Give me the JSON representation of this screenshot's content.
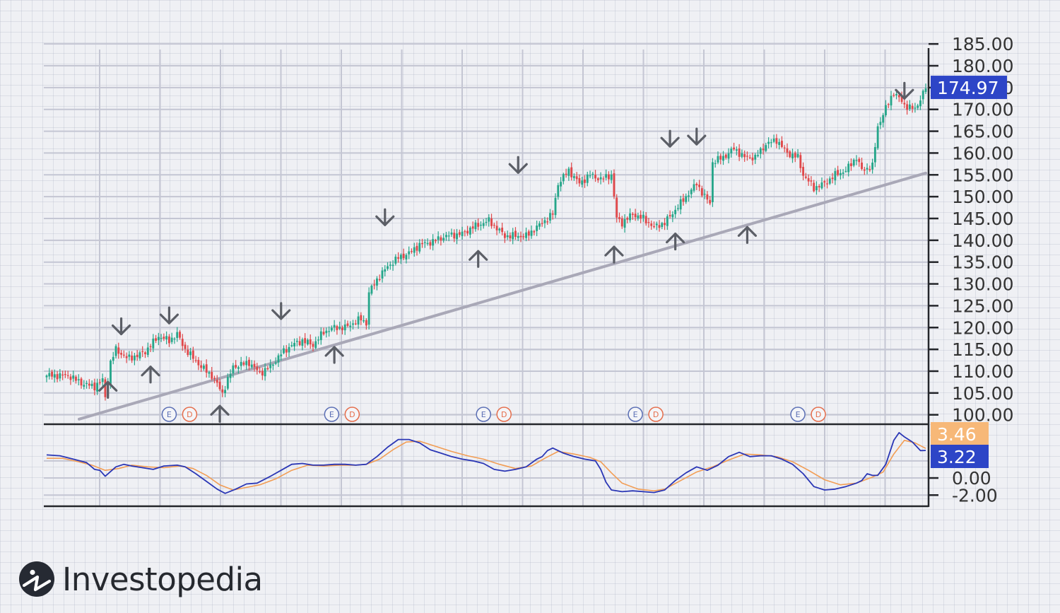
{
  "brand": {
    "name": "Investopedia"
  },
  "chart_data": {
    "type": "candlestick",
    "panels": [
      {
        "name": "price",
        "ylim": [
          98,
          186
        ],
        "ticks": [
          "185.00",
          "180.00",
          "175.00",
          "170.00",
          "165.00",
          "160.00",
          "155.00",
          "150.00",
          "145.00",
          "140.00",
          "135.00",
          "130.00",
          "125.00",
          "120.00",
          "115.00",
          "110.00",
          "105.00",
          "100.00"
        ],
        "last_price": {
          "value": 174.97,
          "label": "174.97",
          "color": "#2d45c7"
        },
        "up_color": "#26a68a",
        "down_color": "#e0484a",
        "anchors": [
          [
            0,
            109
          ],
          [
            8,
            109
          ],
          [
            14,
            107
          ],
          [
            18,
            106.5
          ],
          [
            21,
            108
          ],
          [
            22,
            104
          ],
          [
            24,
            112
          ],
          [
            26,
            115
          ],
          [
            30,
            113
          ],
          [
            34,
            113.5
          ],
          [
            37,
            114.5
          ],
          [
            42,
            118
          ],
          [
            46,
            117
          ],
          [
            49,
            118.5
          ],
          [
            52,
            115
          ],
          [
            58,
            111
          ],
          [
            62,
            109
          ],
          [
            66,
            105
          ],
          [
            70,
            111
          ],
          [
            76,
            112
          ],
          [
            80,
            109.5
          ],
          [
            84,
            111
          ],
          [
            88,
            114
          ],
          [
            92,
            116
          ],
          [
            96,
            117
          ],
          [
            100,
            116
          ],
          [
            104,
            119
          ],
          [
            108,
            120
          ],
          [
            112,
            120
          ],
          [
            118,
            122
          ],
          [
            120,
            121
          ],
          [
            121,
            128
          ],
          [
            124,
            131
          ],
          [
            128,
            134
          ],
          [
            132,
            136
          ],
          [
            136,
            137
          ],
          [
            140,
            139
          ],
          [
            144,
            139.5
          ],
          [
            150,
            141
          ],
          [
            156,
            141.5
          ],
          [
            160,
            143
          ],
          [
            166,
            144.5
          ],
          [
            172,
            141
          ],
          [
            180,
            141
          ],
          [
            184,
            143
          ],
          [
            190,
            146
          ],
          [
            192,
            153
          ],
          [
            196,
            156
          ],
          [
            200,
            153
          ],
          [
            204,
            155
          ],
          [
            208,
            154
          ],
          [
            212,
            155
          ],
          [
            214,
            145
          ],
          [
            216,
            144
          ],
          [
            220,
            146
          ],
          [
            224,
            145
          ],
          [
            228,
            143
          ],
          [
            232,
            144
          ],
          [
            236,
            147
          ],
          [
            240,
            150
          ],
          [
            244,
            153
          ],
          [
            247,
            150
          ],
          [
            249,
            148.5
          ],
          [
            250,
            158
          ],
          [
            254,
            159
          ],
          [
            258,
            161
          ],
          [
            262,
            159
          ],
          [
            266,
            159
          ],
          [
            270,
            162
          ],
          [
            274,
            163
          ],
          [
            278,
            160
          ],
          [
            282,
            159
          ],
          [
            284,
            155
          ],
          [
            288,
            152
          ],
          [
            292,
            153
          ],
          [
            296,
            155
          ],
          [
            300,
            156
          ],
          [
            304,
            159
          ],
          [
            306,
            156
          ],
          [
            310,
            157
          ],
          [
            312,
            166
          ],
          [
            314,
            169
          ],
          [
            318,
            174
          ],
          [
            322,
            171
          ],
          [
            326,
            170
          ],
          [
            330,
            174.97
          ]
        ],
        "arrows_down": [
          [
            28,
            118.5
          ],
          [
            46,
            121
          ],
          [
            88,
            122
          ],
          [
            127,
            143.5
          ],
          [
            177,
            155.5
          ],
          [
            234,
            161.5
          ],
          [
            244,
            162
          ],
          [
            322,
            172.5
          ]
        ],
        "arrows_up": [
          [
            23,
            107.5
          ],
          [
            39,
            111
          ],
          [
            65,
            102
          ],
          [
            108,
            115.5
          ],
          [
            162,
            137.5
          ],
          [
            213,
            138.5
          ],
          [
            236,
            141.5
          ],
          [
            263,
            143
          ]
        ],
        "earnings_dividend_markers": [
          {
            "x": 46,
            "labels": [
              "E",
              "D"
            ]
          },
          {
            "x": 107,
            "labels": [
              "E",
              "D"
            ]
          },
          {
            "x": 164,
            "labels": [
              "E",
              "D"
            ]
          },
          {
            "x": 221,
            "labels": [
              "E",
              "D"
            ]
          },
          {
            "x": 282,
            "labels": [
              "E",
              "D"
            ]
          }
        ],
        "trendline": {
          "from": [
            0,
            99
          ],
          "to": [
            330,
            155.4
          ],
          "color": "#a9a8b7"
        }
      },
      {
        "name": "macd",
        "ylim": [
          -3.3,
          6.2
        ],
        "ticks": [
          "0.00",
          "-2.00"
        ],
        "series": [
          {
            "color": "#2a36b5",
            "last": {
              "value": 3.22,
              "label": "3.22",
              "color": "#2d45c7"
            },
            "values": [
              [
                0,
                2.7
              ],
              [
                5,
                2.6
              ],
              [
                10,
                2.2
              ],
              [
                15,
                1.8
              ],
              [
                18,
                1.0
              ],
              [
                20,
                0.9
              ],
              [
                22,
                0.2
              ],
              [
                26,
                1.3
              ],
              [
                29,
                1.6
              ],
              [
                32,
                1.4
              ],
              [
                36,
                1.2
              ],
              [
                40,
                1.0
              ],
              [
                44,
                1.4
              ],
              [
                49,
                1.5
              ],
              [
                52,
                1.3
              ],
              [
                56,
                0.5
              ],
              [
                60,
                -0.4
              ],
              [
                64,
                -1.3
              ],
              [
                67,
                -1.8
              ],
              [
                71,
                -1.3
              ],
              [
                75,
                -0.7
              ],
              [
                79,
                -0.6
              ],
              [
                84,
                0.2
              ],
              [
                88,
                0.9
              ],
              [
                92,
                1.6
              ],
              [
                96,
                1.7
              ],
              [
                100,
                1.5
              ],
              [
                104,
                1.5
              ],
              [
                108,
                1.6
              ],
              [
                112,
                1.6
              ],
              [
                116,
                1.5
              ],
              [
                120,
                1.6
              ],
              [
                124,
                2.5
              ],
              [
                128,
                3.6
              ],
              [
                132,
                4.5
              ],
              [
                136,
                4.5
              ],
              [
                140,
                4.1
              ],
              [
                144,
                3.3
              ],
              [
                148,
                2.9
              ],
              [
                152,
                2.5
              ],
              [
                156,
                2.2
              ],
              [
                160,
                2.0
              ],
              [
                164,
                1.7
              ],
              [
                168,
                1.0
              ],
              [
                172,
                0.8
              ],
              [
                176,
                1.0
              ],
              [
                180,
                1.3
              ],
              [
                184,
                2.2
              ],
              [
                186,
                2.5
              ],
              [
                188,
                3.2
              ],
              [
                190,
                3.5
              ],
              [
                194,
                2.9
              ],
              [
                198,
                2.5
              ],
              [
                202,
                2.2
              ],
              [
                206,
                2.0
              ],
              [
                208,
                1.0
              ],
              [
                210,
                -0.5
              ],
              [
                212,
                -1.4
              ],
              [
                216,
                -1.6
              ],
              [
                220,
                -1.5
              ],
              [
                224,
                -1.6
              ],
              [
                228,
                -1.7
              ],
              [
                232,
                -1.4
              ],
              [
                236,
                -0.3
              ],
              [
                240,
                0.6
              ],
              [
                244,
                1.3
              ],
              [
                248,
                0.9
              ],
              [
                252,
                1.5
              ],
              [
                256,
                2.5
              ],
              [
                260,
                3.0
              ],
              [
                264,
                2.5
              ],
              [
                268,
                2.6
              ],
              [
                272,
                2.6
              ],
              [
                276,
                2.2
              ],
              [
                280,
                1.6
              ],
              [
                284,
                0.5
              ],
              [
                288,
                -1.0
              ],
              [
                292,
                -1.4
              ],
              [
                296,
                -1.3
              ],
              [
                300,
                -1.0
              ],
              [
                304,
                -0.6
              ],
              [
                306,
                -0.3
              ],
              [
                308,
                0.5
              ],
              [
                310,
                0.3
              ],
              [
                312,
                0.3
              ],
              [
                315,
                1.6
              ],
              [
                318,
                4.4
              ],
              [
                320,
                5.3
              ],
              [
                322,
                4.8
              ],
              [
                325,
                4.2
              ],
              [
                328,
                3.2
              ],
              [
                330,
                3.22
              ]
            ]
          },
          {
            "color": "#f29d54",
            "last": {
              "value": 3.46,
              "label": "3.46",
              "color": "#f7b878"
            },
            "values": [
              [
                0,
                2.3
              ],
              [
                6,
                2.3
              ],
              [
                12,
                1.9
              ],
              [
                17,
                1.5
              ],
              [
                22,
                0.9
              ],
              [
                27,
                1.1
              ],
              [
                32,
                1.5
              ],
              [
                38,
                1.3
              ],
              [
                44,
                1.2
              ],
              [
                50,
                1.4
              ],
              [
                55,
                1.1
              ],
              [
                60,
                0.3
              ],
              [
                65,
                -0.8
              ],
              [
                70,
                -1.4
              ],
              [
                75,
                -1.1
              ],
              [
                80,
                -0.8
              ],
              [
                86,
                -0.1
              ],
              [
                92,
                0.9
              ],
              [
                98,
                1.5
              ],
              [
                104,
                1.4
              ],
              [
                110,
                1.5
              ],
              [
                116,
                1.5
              ],
              [
                120,
                1.6
              ],
              [
                125,
                2.2
              ],
              [
                130,
                3.3
              ],
              [
                135,
                4.2
              ],
              [
                140,
                4.3
              ],
              [
                146,
                3.7
              ],
              [
                152,
                3.1
              ],
              [
                158,
                2.6
              ],
              [
                164,
                2.2
              ],
              [
                170,
                1.6
              ],
              [
                176,
                1.1
              ],
              [
                182,
                1.4
              ],
              [
                187,
                2.3
              ],
              [
                192,
                3.1
              ],
              [
                198,
                2.8
              ],
              [
                204,
                2.4
              ],
              [
                208,
                1.9
              ],
              [
                212,
                0.6
              ],
              [
                216,
                -0.6
              ],
              [
                222,
                -1.3
              ],
              [
                228,
                -1.5
              ],
              [
                232,
                -1.3
              ],
              [
                238,
                -0.3
              ],
              [
                244,
                0.7
              ],
              [
                250,
                1.3
              ],
              [
                256,
                2.1
              ],
              [
                262,
                2.8
              ],
              [
                268,
                2.7
              ],
              [
                274,
                2.5
              ],
              [
                280,
                1.9
              ],
              [
                286,
                0.9
              ],
              [
                292,
                -0.2
              ],
              [
                298,
                -0.8
              ],
              [
                304,
                -0.6
              ],
              [
                310,
                0.1
              ],
              [
                314,
                0.7
              ],
              [
                318,
                2.8
              ],
              [
                322,
                4.4
              ],
              [
                326,
                4.1
              ],
              [
                330,
                3.46
              ]
            ]
          }
        ]
      }
    ]
  }
}
